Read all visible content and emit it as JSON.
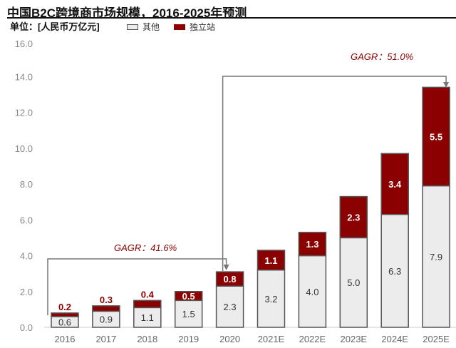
{
  "chart_data": {
    "type": "bar",
    "stacked": true,
    "title": "中国B2C跨境商市场规模，2016-2025年预测",
    "unit_label": "单位：[人民币万亿元]",
    "categories": [
      "2016",
      "2017",
      "2018",
      "2019",
      "2020",
      "2021E",
      "2022E",
      "2023E",
      "2024E",
      "2025E"
    ],
    "series": [
      {
        "name": "其他",
        "color": "#ececec",
        "values": [
          0.6,
          0.9,
          1.1,
          1.5,
          2.3,
          3.2,
          4.0,
          5.0,
          6.3,
          7.9
        ]
      },
      {
        "name": "独立站",
        "color": "#8b0000",
        "values": [
          0.2,
          0.3,
          0.4,
          0.5,
          0.8,
          1.1,
          1.3,
          2.3,
          3.4,
          5.5
        ]
      }
    ],
    "ylim": [
      0,
      16
    ],
    "yticks": [
      "0.0",
      "2.0",
      "4.0",
      "6.0",
      "8.0",
      "10.0",
      "12.0",
      "14.0",
      "16.0"
    ],
    "annotations": [
      "GAGR：41.6%",
      "GAGR：51.0%"
    ],
    "legend_position": "top-left"
  }
}
